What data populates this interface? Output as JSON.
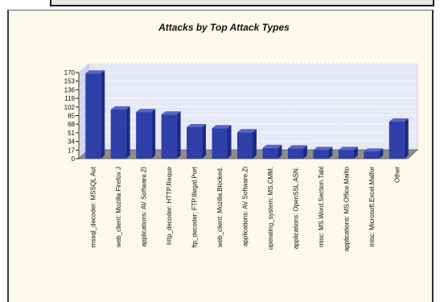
{
  "chart_data": {
    "type": "bar",
    "title": "Attacks by Top Attack Types",
    "xlabel": "",
    "ylabel": "",
    "ylim": [
      0,
      170
    ],
    "yticks": [
      0,
      17,
      34,
      51,
      68,
      85,
      102,
      119,
      136,
      153,
      170
    ],
    "grid": true,
    "bar_color": "#2f3fa8",
    "plot_background": "#e6e8f6",
    "categories": [
      "mssql_decoder: MSSQL Aut",
      "web_client: Mozilla Firefox J",
      "applications: AV Software.ZI",
      "http_decoder: HTTP.Reque",
      "ftp_decoder: FTP.Illegal.Port",
      "web_client: Mozilla.Blocked.",
      "applications: AV Software.Zi",
      "operating_system: MS.CMM.",
      "applications: OpenSSL.ASN.",
      "misc: MS.Word.Section.Tabl",
      "applications: MS.Office.Mailto",
      "misc: Microsoft.Excel.Malfor",
      "Other"
    ],
    "values": [
      168,
      97,
      92,
      87,
      62,
      60,
      52,
      21,
      20,
      17,
      17,
      14,
      73
    ]
  }
}
